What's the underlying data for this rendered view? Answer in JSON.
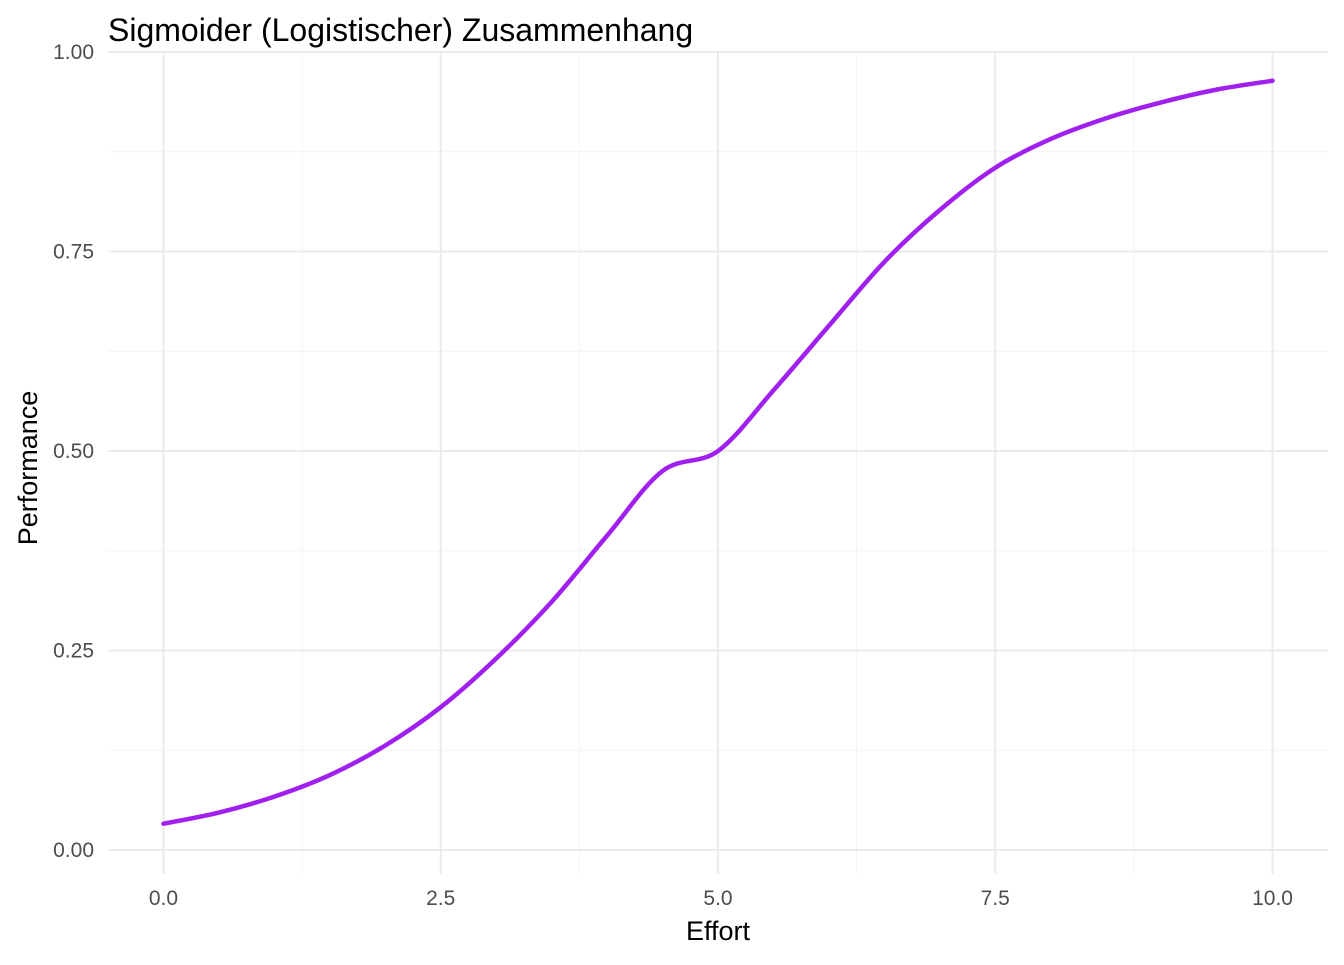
{
  "chart_data": {
    "type": "line",
    "title": "Sigmoider (Logistischer) Zusammenhang",
    "xlabel": "Effort",
    "ylabel": "Performance",
    "xlim": [
      -0.5,
      10.5
    ],
    "ylim": [
      -0.03,
      1.0
    ],
    "x_ticks": [
      0,
      2.5,
      5,
      7.5,
      10
    ],
    "x_tick_labels": [
      "0.0",
      "2.5",
      "5.0",
      "7.5",
      "10.0"
    ],
    "y_ticks": [
      0,
      0.25,
      0.5,
      0.75,
      1.0
    ],
    "y_tick_labels": [
      "0.00",
      "0.25",
      "0.50",
      "0.75",
      "1.00"
    ],
    "grid": true,
    "legend": "none",
    "line_color": "#a020f0",
    "series": [
      {
        "x": [
          0,
          0.5,
          1,
          1.5,
          2,
          2.5,
          3,
          3.5,
          4,
          4.5,
          5,
          5.5,
          6,
          6.5,
          7,
          7.5,
          8,
          8.5,
          9,
          9.5,
          10
        ],
        "values": [
          0.033,
          0.047,
          0.067,
          0.094,
          0.131,
          0.179,
          0.24,
          0.311,
          0.394,
          0.475,
          0.5,
          0.576,
          0.657,
          0.737,
          0.802,
          0.855,
          0.891,
          0.917,
          0.937,
          0.953,
          0.964
        ]
      }
    ]
  }
}
